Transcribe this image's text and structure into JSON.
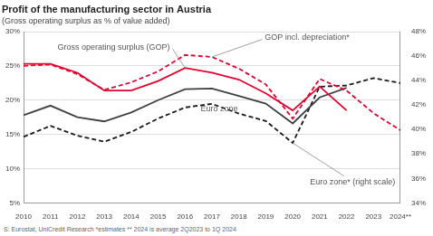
{
  "chart_data": {
    "type": "line",
    "title": "Profit of the manufacturing sector in Austria",
    "subtitle": "(Gross operating surplus as % of value added)",
    "source": "S: Eurostat, UniCredit Research *estimates ** 2024 is average 2Q2023 to 1Q 2024",
    "categories": [
      "2010",
      "2011",
      "2012",
      "2013",
      "2014",
      "2015",
      "2016",
      "2017",
      "2018",
      "2019",
      "2020",
      "2021",
      "2022",
      "2023",
      "2024**"
    ],
    "series": [
      {
        "name": "Gross operating surplus (GOP)",
        "color": "#e4032e",
        "line_style": "solid",
        "axis": "y",
        "values": [
          25.3,
          25.3,
          24.0,
          21.4,
          21.4,
          22.8,
          24.7,
          24.0,
          23.0,
          21.0,
          18.5,
          22.0,
          18.5,
          null,
          null
        ]
      },
      {
        "name": "GOP incl. depreciation*",
        "color": "#e4032e",
        "line_style": "dashed",
        "axis": "y",
        "values": [
          25.0,
          25.2,
          23.8,
          21.5,
          22.6,
          24.2,
          26.6,
          26.3,
          24.6,
          22.3,
          17.3,
          23.1,
          21.4,
          18.1,
          15.6
        ]
      },
      {
        "name": "Euro zone",
        "color": "#404040",
        "line_style": "solid",
        "axis": "y",
        "values": [
          17.8,
          19.2,
          17.5,
          16.9,
          18.2,
          20.0,
          21.6,
          21.7,
          20.6,
          19.5,
          16.6,
          20.4,
          21.8,
          null,
          null
        ]
      },
      {
        "name": "Euro zone* (right scale)",
        "color": "#1a1a1a",
        "line_style": "dashed",
        "axis": "y2",
        "values": [
          39.4,
          40.3,
          39.5,
          39.0,
          39.8,
          40.9,
          41.8,
          42.1,
          41.3,
          40.7,
          38.9,
          43.5,
          43.6,
          44.2,
          43.8
        ]
      }
    ],
    "ylim": [
      5,
      30
    ],
    "yticks": [
      {
        "value": 5,
        "label": "5%"
      },
      {
        "value": 10,
        "label": "10%"
      },
      {
        "value": 15,
        "label": "15%"
      },
      {
        "value": 20,
        "label": "20%"
      },
      {
        "value": 25,
        "label": "25%"
      },
      {
        "value": 30,
        "label": "30%"
      }
    ],
    "y2lim": [
      34,
      48
    ],
    "y2ticks": [
      {
        "value": 34,
        "label": "34%"
      },
      {
        "value": 36,
        "label": "36%"
      },
      {
        "value": 38,
        "label": "38%"
      },
      {
        "value": 40,
        "label": "40%"
      },
      {
        "value": 42,
        "label": "42%"
      },
      {
        "value": 44,
        "label": "44%"
      },
      {
        "value": 46,
        "label": "46%"
      },
      {
        "value": 48,
        "label": "48%"
      }
    ],
    "grid": true
  }
}
